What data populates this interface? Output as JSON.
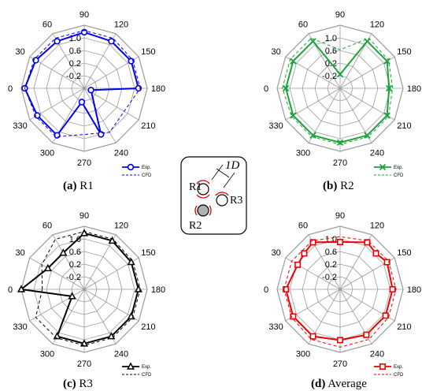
{
  "colors": {
    "grid": "#9a9a9a",
    "r1": "#0000ee",
    "r2": "#1aa339",
    "r3": "#000000",
    "avg": "#ee0000"
  },
  "diagram": {
    "labels": {
      "r1": "R1",
      "r2": "R2",
      "r3": "R3",
      "spacing": "1D"
    }
  },
  "chart_data": [
    {
      "type": "polar-line",
      "caption_letter": "(a)",
      "caption_text": "R1",
      "angles": [
        0,
        30,
        60,
        90,
        120,
        150,
        180,
        210,
        240,
        270,
        300,
        330
      ],
      "angle_labels": [
        "0",
        "30",
        "60",
        "90",
        "120",
        "150",
        "180",
        "210",
        "240",
        "270",
        "300",
        "330"
      ],
      "r_ticks": [
        "-0.2",
        "0.2",
        "0.6",
        "1.0"
      ],
      "rlim": [
        -0.6,
        1.2
      ],
      "series": [
        {
          "name": "Exp.",
          "marker": "circle",
          "style": "solid",
          "theta": [
            0,
            30,
            60,
            90,
            120,
            150,
            180,
            195,
            250,
            280,
            300,
            330,
            360
          ],
          "r": [
            1.1,
            1.0,
            0.95,
            1.0,
            0.95,
            0.95,
            0.95,
            -0.4,
            0.8,
            -0.2,
            0.95,
            0.95,
            1.1
          ]
        },
        {
          "name": "CFD",
          "marker": "none",
          "style": "dashed",
          "theta": [
            0,
            30,
            60,
            90,
            120,
            150,
            180,
            240,
            300,
            330,
            360
          ],
          "r": [
            1.1,
            1.05,
            1.05,
            1.05,
            1.05,
            1.0,
            1.0,
            0.85,
            1.0,
            1.0,
            1.1
          ]
        }
      ]
    },
    {
      "type": "polar-line",
      "caption_letter": "(b)",
      "caption_text": "R2",
      "angles": [
        0,
        30,
        60,
        90,
        120,
        150,
        180,
        210,
        240,
        270,
        300,
        330
      ],
      "angle_labels": [
        "0",
        "30",
        "60",
        "90",
        "120",
        "150",
        "180",
        "210",
        "240",
        "270",
        "300",
        "330"
      ],
      "r_ticks": [
        "-0.2",
        "0.2",
        "0.6",
        "1.0"
      ],
      "rlim": [
        -0.6,
        1.2
      ],
      "series": [
        {
          "name": "Exp.",
          "marker": "x",
          "style": "solid",
          "theta": [
            0,
            30,
            60,
            90,
            120,
            150,
            180,
            210,
            240,
            270,
            300,
            330,
            360
          ],
          "r": [
            0.95,
            0.95,
            0.95,
            -0.2,
            0.95,
            0.95,
            0.8,
            0.95,
            0.95,
            0.95,
            0.95,
            0.95,
            0.95
          ]
        },
        {
          "name": "CFD",
          "marker": "none",
          "style": "dashed",
          "theta": [
            0,
            30,
            60,
            90,
            120,
            150,
            180,
            210,
            240,
            270,
            300,
            330,
            360
          ],
          "r": [
            1.05,
            1.05,
            1.05,
            0.5,
            1.05,
            1.0,
            0.9,
            1.0,
            1.0,
            1.0,
            1.0,
            1.0,
            1.05
          ]
        }
      ]
    },
    {
      "type": "polar-line",
      "caption_letter": "(c)",
      "caption_text": "R3",
      "angles": [
        0,
        30,
        60,
        90,
        120,
        150,
        180,
        210,
        240,
        270,
        300,
        330
      ],
      "angle_labels": [
        "0",
        "30",
        "60",
        "90",
        "120",
        "150",
        "180",
        "210",
        "240",
        "270",
        "300",
        "330"
      ],
      "r_ticks": [
        "-0.2",
        "0.2",
        "0.6",
        "1.0"
      ],
      "rlim": [
        -0.6,
        1.2
      ],
      "series": [
        {
          "name": "Exp.",
          "marker": "triangle",
          "style": "solid",
          "theta": [
            0,
            30,
            60,
            90,
            120,
            150,
            180,
            210,
            240,
            270,
            300,
            330,
            360
          ],
          "r": [
            1.2,
            0.6,
            0.6,
            1.0,
            1.0,
            0.95,
            0.95,
            0.95,
            0.95,
            0.95,
            0.95,
            -0.2,
            1.2
          ]
        },
        {
          "name": "CFD",
          "marker": "none",
          "style": "dashed",
          "theta": [
            0,
            30,
            60,
            90,
            120,
            150,
            180,
            210,
            240,
            270,
            300,
            330,
            360
          ],
          "r": [
            0.6,
            0.8,
            1.05,
            1.05,
            1.05,
            1.0,
            1.0,
            1.0,
            1.0,
            1.0,
            1.0,
            1.0,
            0.6
          ]
        }
      ]
    },
    {
      "type": "polar-line",
      "caption_letter": "(d)",
      "caption_text": "Average",
      "angles": [
        0,
        30,
        60,
        90,
        120,
        150,
        180,
        210,
        240,
        270,
        300,
        330
      ],
      "angle_labels": [
        "0",
        "30",
        "60",
        "90",
        "120",
        "150",
        "180",
        "210",
        "240",
        "270",
        "300",
        "330"
      ],
      "r_ticks": [
        "-0.2",
        "0.2",
        "0.6",
        "1.0"
      ],
      "rlim": [
        -0.6,
        1.2
      ],
      "series": [
        {
          "name": "Exp.",
          "marker": "square",
          "style": "solid",
          "theta": [
            0,
            30,
            45,
            60,
            90,
            120,
            135,
            150,
            180,
            210,
            240,
            270,
            300,
            330,
            360
          ],
          "r": [
            0.95,
            0.8,
            0.85,
            0.95,
            0.75,
            0.95,
            0.85,
            0.95,
            0.9,
            0.9,
            0.9,
            0.85,
            0.95,
            0.95,
            0.95
          ]
        },
        {
          "name": "CFD",
          "marker": "none",
          "style": "dashed",
          "theta": [
            0,
            30,
            60,
            90,
            120,
            150,
            180,
            210,
            240,
            270,
            300,
            330,
            360
          ],
          "r": [
            1.0,
            1.0,
            1.0,
            0.9,
            1.0,
            1.0,
            1.0,
            1.0,
            1.05,
            1.05,
            1.05,
            1.0,
            1.0
          ]
        }
      ]
    }
  ]
}
